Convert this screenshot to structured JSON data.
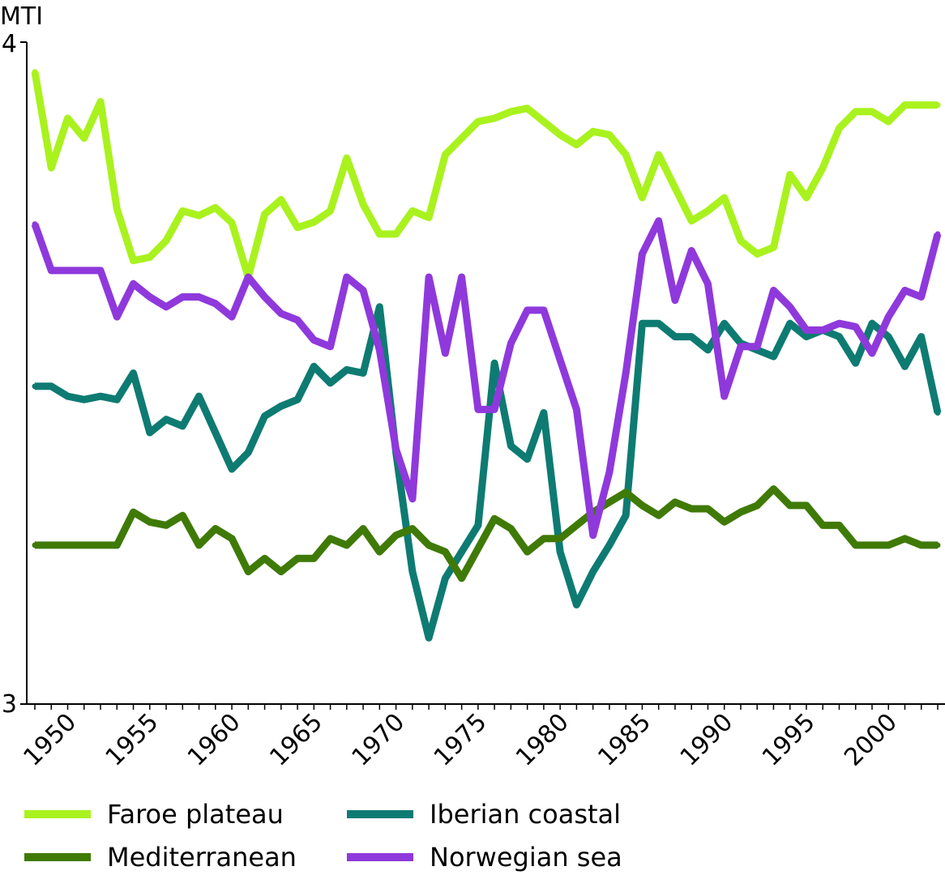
{
  "chart_data": {
    "type": "line",
    "title": "",
    "ylabel": "MTI",
    "xlabel": "",
    "ylim": [
      3,
      4
    ],
    "xlim": [
      1948,
      2003
    ],
    "yticks": [
      "3",
      "4"
    ],
    "xticks": [
      1950,
      1955,
      1960,
      1965,
      1970,
      1975,
      1980,
      1985,
      1990,
      1995,
      2000
    ],
    "x": [
      1948,
      1949,
      1950,
      1951,
      1952,
      1953,
      1954,
      1955,
      1956,
      1957,
      1958,
      1959,
      1960,
      1961,
      1962,
      1963,
      1964,
      1965,
      1966,
      1967,
      1968,
      1969,
      1970,
      1971,
      1972,
      1973,
      1974,
      1975,
      1976,
      1977,
      1978,
      1979,
      1980,
      1981,
      1982,
      1983,
      1984,
      1985,
      1986,
      1987,
      1988,
      1989,
      1990,
      1991,
      1992,
      1993,
      1994,
      1995,
      1996,
      1997,
      1998,
      1999,
      2000,
      2001,
      2002,
      2003
    ],
    "legend": [
      {
        "name": "Faroe plateau",
        "color": "#a9f21e"
      },
      {
        "name": "Iberian coastal",
        "color": "#0e7b72"
      },
      {
        "name": "Mediterranean",
        "color": "#3f7a07"
      },
      {
        "name": "Norwegian sea",
        "color": "#8f39dc"
      }
    ],
    "series": [
      {
        "name": "Faroe plateau",
        "color": "#a9f21e",
        "values": [
          3.955,
          3.81,
          3.885,
          3.855,
          3.91,
          3.748,
          3.67,
          3.675,
          3.7,
          3.745,
          3.738,
          3.75,
          3.727,
          3.645,
          3.74,
          3.762,
          3.72,
          3.728,
          3.745,
          3.825,
          3.755,
          3.71,
          3.71,
          3.745,
          3.735,
          3.83,
          3.855,
          3.88,
          3.885,
          3.895,
          3.9,
          3.88,
          3.86,
          3.845,
          3.865,
          3.86,
          3.83,
          3.765,
          3.83,
          3.78,
          3.73,
          3.745,
          3.765,
          3.7,
          3.68,
          3.69,
          3.8,
          3.765,
          3.81,
          3.87,
          3.895,
          3.895,
          3.88,
          3.905,
          3.905,
          3.905
        ]
      },
      {
        "name": "Iberian coastal",
        "color": "#0e7b72",
        "values": [
          3.48,
          3.48,
          3.465,
          3.46,
          3.465,
          3.46,
          3.5,
          3.41,
          3.43,
          3.42,
          3.465,
          3.41,
          3.355,
          3.38,
          3.435,
          3.45,
          3.46,
          3.51,
          3.485,
          3.505,
          3.5,
          3.6,
          3.38,
          3.2,
          3.1,
          3.19,
          3.23,
          3.27,
          3.515,
          3.39,
          3.37,
          3.44,
          3.23,
          3.15,
          3.2,
          3.24,
          3.285,
          3.575,
          3.575,
          3.555,
          3.555,
          3.535,
          3.575,
          3.545,
          3.535,
          3.525,
          3.575,
          3.555,
          3.565,
          3.555,
          3.515,
          3.575,
          3.555,
          3.51,
          3.555,
          3.44
        ]
      },
      {
        "name": "Mediterranean",
        "color": "#3f7a07",
        "values": [
          3.24,
          3.24,
          3.24,
          3.24,
          3.24,
          3.24,
          3.29,
          3.275,
          3.27,
          3.285,
          3.24,
          3.265,
          3.25,
          3.2,
          3.22,
          3.2,
          3.22,
          3.22,
          3.25,
          3.24,
          3.265,
          3.23,
          3.255,
          3.265,
          3.24,
          3.23,
          3.19,
          3.235,
          3.28,
          3.265,
          3.23,
          3.25,
          3.25,
          3.27,
          3.29,
          3.305,
          3.32,
          3.3,
          3.285,
          3.305,
          3.295,
          3.295,
          3.275,
          3.29,
          3.3,
          3.325,
          3.3,
          3.3,
          3.27,
          3.27,
          3.24,
          3.24,
          3.24,
          3.25,
          3.24,
          3.24
        ]
      },
      {
        "name": "Norwegian sea",
        "color": "#8f39dc",
        "values": [
          3.725,
          3.655,
          3.655,
          3.655,
          3.655,
          3.585,
          3.635,
          3.615,
          3.6,
          3.615,
          3.615,
          3.605,
          3.585,
          3.645,
          3.615,
          3.59,
          3.58,
          3.55,
          3.54,
          3.645,
          3.625,
          3.535,
          3.385,
          3.31,
          3.645,
          3.53,
          3.645,
          3.445,
          3.445,
          3.545,
          3.595,
          3.595,
          3.52,
          3.445,
          3.255,
          3.35,
          3.5,
          3.68,
          3.73,
          3.61,
          3.685,
          3.635,
          3.465,
          3.54,
          3.54,
          3.625,
          3.6,
          3.565,
          3.565,
          3.575,
          3.57,
          3.53,
          3.585,
          3.625,
          3.615,
          3.71
        ]
      }
    ]
  }
}
